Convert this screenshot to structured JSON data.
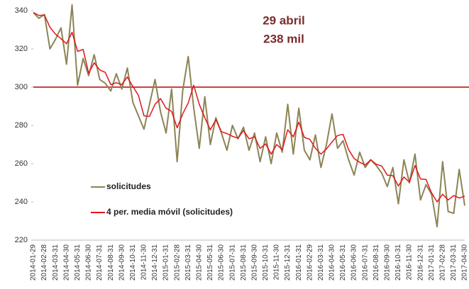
{
  "chart_data": {
    "type": "line",
    "annotations": [
      "29 abril",
      "238 mil"
    ],
    "categories": [
      "2014-01-29",
      null,
      "2014-02-28",
      null,
      "2014-03-31",
      null,
      "2014-04-30",
      null,
      "2014-05-31",
      null,
      "2014-06-30",
      null,
      "2014-07-31",
      null,
      "2014-08-31",
      null,
      "2014-09-30",
      null,
      "2014-10-31",
      null,
      "2014-11-30",
      null,
      "2014-12-31",
      null,
      "2015-01-31",
      null,
      "2015-02-28",
      null,
      "2015-03-31",
      null,
      "2015-04-30",
      null,
      "2015-05-31",
      null,
      "2015-06-30",
      null,
      "2015-07-31",
      null,
      "2015-08-31",
      null,
      "2015-09-30",
      null,
      "2015-10-31",
      null,
      "2015-11-30",
      null,
      "2015-12-31",
      null,
      "2016-01-31",
      null,
      "2016-02-29",
      null,
      "2016-03-31",
      null,
      "2016-04-30",
      null,
      "2016-05-31",
      null,
      "2016-06-30",
      null,
      "2016-07-31",
      null,
      "2016-08-31",
      null,
      "2016-09-30",
      null,
      "2016-10-31",
      null,
      "2016-11-30",
      null,
      "2016-12-31",
      null,
      "2017-01-31",
      null,
      "2017-02-28",
      null,
      "2017-03-31",
      null,
      "2017-04-30"
    ],
    "series": [
      {
        "name": "solicitudes",
        "color": "#8c8455",
        "values": [
          339,
          336,
          338,
          320,
          325,
          331,
          312,
          343,
          301,
          315,
          306,
          317,
          304,
          302,
          298,
          307,
          299,
          310,
          292,
          285,
          278,
          291,
          304,
          287,
          276,
          299,
          261,
          298,
          316,
          289,
          268,
          295,
          270,
          284,
          276,
          267,
          280,
          273,
          279,
          267,
          276,
          261,
          274,
          260,
          276,
          266,
          291,
          265,
          289,
          267,
          262,
          275,
          258,
          270,
          286,
          268,
          272,
          262,
          254,
          266,
          258,
          262,
          259,
          255,
          248,
          258,
          239,
          262,
          250,
          265,
          241,
          249,
          244,
          227,
          261,
          235,
          234,
          257,
          238
        ]
      },
      {
        "name": "4 per. media móvil (solicitudes)",
        "color": "#e3151a",
        "values": [
          339,
          337.5,
          337.7,
          331.3,
          327.7,
          325.3,
          322.7,
          328.7,
          318.7,
          319.7,
          307.3,
          312.7,
          309,
          307.7,
          301.3,
          302.3,
          301.3,
          305.3,
          300.3,
          295.7,
          285,
          284.7,
          291,
          294,
          289,
          287.3,
          278.7,
          286,
          291.7,
          301,
          291,
          284,
          277.7,
          283,
          276.7,
          275.7,
          274.3,
          273.3,
          277.3,
          273,
          274,
          268,
          270.3,
          265,
          270,
          267.3,
          277.7,
          274,
          281.7,
          273.7,
          272.7,
          268,
          265,
          267.7,
          271.3,
          274.7,
          275.3,
          267.3,
          262.7,
          260.7,
          259.3,
          262,
          259.7,
          258.7,
          254,
          253.7,
          248.3,
          253,
          250.3,
          259,
          252,
          251.7,
          244.7,
          240,
          244,
          241,
          243.3,
          242,
          243
        ]
      }
    ],
    "hline": {
      "value": 300,
      "color": "#c00000"
    },
    "ylim": [
      220,
      340
    ],
    "yticks": [
      220,
      240,
      260,
      280,
      300,
      320,
      340
    ]
  }
}
